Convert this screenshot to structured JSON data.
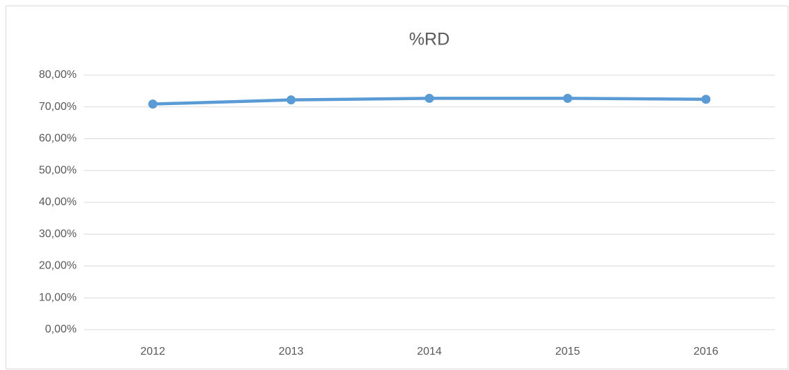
{
  "chart_data": {
    "type": "line",
    "title": "%RD",
    "categories": [
      "2012",
      "2013",
      "2014",
      "2015",
      "2016"
    ],
    "series": [
      {
        "name": "%RD",
        "color": "#5b9bd5",
        "values": [
          70.9,
          72.2,
          72.7,
          72.7,
          72.4
        ]
      }
    ],
    "ylim": [
      0,
      80
    ],
    "yticks": [
      {
        "value": 0,
        "label": "0,00%"
      },
      {
        "value": 10,
        "label": "10,00%"
      },
      {
        "value": 20,
        "label": "20,00%"
      },
      {
        "value": 30,
        "label": "30,00%"
      },
      {
        "value": 40,
        "label": "40,00%"
      },
      {
        "value": 50,
        "label": "50,00%"
      },
      {
        "value": 60,
        "label": "60,00%"
      },
      {
        "value": 70,
        "label": "70,00%"
      },
      {
        "value": 80,
        "label": "80,00%"
      }
    ],
    "grid": true
  }
}
